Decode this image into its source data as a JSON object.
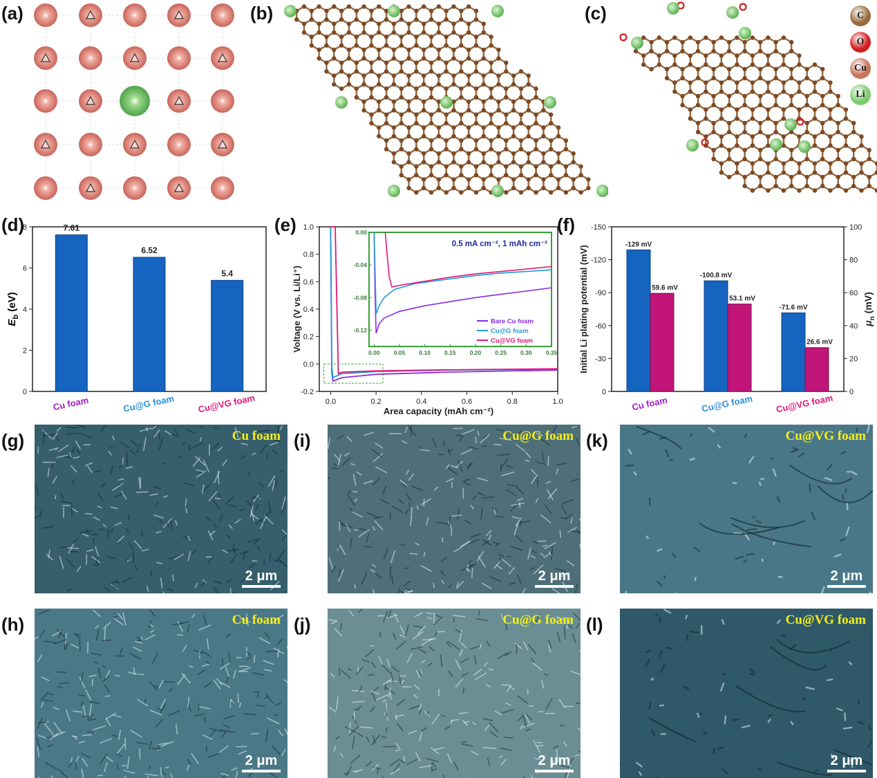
{
  "panels": {
    "a": "(a)",
    "b": "(b)",
    "c": "(c)",
    "d": "(d)",
    "e": "(e)",
    "f": "(f)",
    "g": "(g)",
    "h": "(h)",
    "i": "(i)",
    "j": "(j)",
    "k": "(k)",
    "l": "(l)"
  },
  "legend_atoms": [
    {
      "label": "C",
      "color": "#9a6a3c"
    },
    {
      "label": "O",
      "color": "#d21e1e"
    },
    {
      "label": "Cu",
      "color": "#c8745a"
    },
    {
      "label": "Li",
      "color": "#7dcb6e"
    }
  ],
  "sem_images": [
    {
      "id": "g",
      "title": "Cu foam",
      "scale": "2 μm",
      "tone": "#365e6d"
    },
    {
      "id": "h",
      "title": "Cu foam",
      "scale": "2 μm",
      "tone": "#4b7887"
    },
    {
      "id": "i",
      "title": "Cu@G foam",
      "scale": "2 μm",
      "tone": "#4e6f78"
    },
    {
      "id": "j",
      "title": "Cu@G foam",
      "scale": "2 μm",
      "tone": "#6a8e93"
    },
    {
      "id": "k",
      "title": "Cu@VG foam",
      "scale": "2 μm",
      "tone": "#4a7788"
    },
    {
      "id": "l",
      "title": "Cu@VG foam",
      "scale": "2 μm",
      "tone": "#2f5868"
    }
  ],
  "chart_data": [
    {
      "id": "d",
      "type": "bar",
      "categories": [
        "Cu foam",
        "Cu@G foam",
        "Cu@VG foam"
      ],
      "category_colors": [
        "#a020c0",
        "#2a8fd6",
        "#e0147a"
      ],
      "values": [
        7.61,
        6.52,
        5.4
      ],
      "value_labels": [
        "7.61",
        "6.52",
        "5.4"
      ],
      "ylabel": "E_b (eV)",
      "ylabel_main": "E",
      "ylabel_sub": "b",
      "ylabel_unit": " (eV)",
      "ylim": [
        0,
        8
      ],
      "yticks": [
        "0",
        "2",
        "4",
        "6",
        "8"
      ],
      "bar_color": "#1565c0"
    },
    {
      "id": "e",
      "type": "line",
      "xlabel": "Area capacity (mAh cm⁻²)",
      "ylabel": "Voltage (V vs. Li/Li⁺)",
      "xlim": [
        -0.05,
        1.0
      ],
      "ylim": [
        -0.2,
        1.0
      ],
      "xticks": [
        "0.0",
        "0.2",
        "0.4",
        "0.6",
        "0.8",
        "1.0"
      ],
      "yticks": [
        "-0.2",
        "0.0",
        "0.2",
        "0.4",
        "0.6",
        "0.8",
        "1.0"
      ],
      "series": [
        {
          "name": "Bare Cu foam",
          "color": "#8a2be2",
          "x": [
            0.0,
            0.005,
            0.01,
            0.05,
            0.2,
            0.5,
            0.8,
            1.0
          ],
          "y": [
            1.0,
            -0.06,
            -0.125,
            -0.1,
            -0.075,
            -0.06,
            -0.05,
            -0.045
          ]
        },
        {
          "name": "Cu@G foam",
          "color": "#1e9ad6",
          "x": [
            0.0,
            0.005,
            0.01,
            0.05,
            0.2,
            0.5,
            0.8,
            1.0
          ],
          "y": [
            1.0,
            -0.02,
            -0.1,
            -0.07,
            -0.055,
            -0.045,
            -0.04,
            -0.038
          ]
        },
        {
          "name": "Cu@VG foam",
          "color": "#e0147a",
          "x": [
            0.0,
            0.02,
            0.034,
            0.05,
            0.2,
            0.5,
            0.8,
            1.0
          ],
          "y": [
            1.0,
            1.0,
            -0.07,
            -0.06,
            -0.05,
            -0.043,
            -0.038,
            -0.035
          ]
        }
      ],
      "inset": {
        "annotation": "0.5 mA cm⁻², 1 mAh cm⁻²",
        "xlim": [
          -0.01,
          0.35
        ],
        "ylim": [
          -0.14,
          0.0
        ],
        "xticks": [
          "0.00",
          "0.05",
          "0.10",
          "0.15",
          "0.20",
          "0.25",
          "0.30",
          "0.35"
        ],
        "yticks": [
          "0.00",
          "-0.04",
          "-0.08",
          "-0.12"
        ],
        "series": [
          {
            "name": "Bare Cu foam",
            "color": "#8a2be2",
            "x": [
              0.0,
              0.002,
              0.004,
              0.01,
              0.02,
              0.05,
              0.1,
              0.15,
              0.2,
              0.25,
              0.3,
              0.35
            ],
            "y": [
              0.0,
              -0.08,
              -0.124,
              -0.112,
              -0.105,
              -0.097,
              -0.09,
              -0.085,
              -0.08,
              -0.076,
              -0.072,
              -0.068
            ]
          },
          {
            "name": "Cu@G foam",
            "color": "#1e9ad6",
            "x": [
              0.0,
              0.002,
              0.004,
              0.01,
              0.02,
              0.04,
              0.08,
              0.15,
              0.2,
              0.25,
              0.3,
              0.35
            ],
            "y": [
              0.0,
              -0.05,
              -0.1,
              -0.09,
              -0.08,
              -0.07,
              -0.063,
              -0.057,
              -0.053,
              -0.05,
              -0.048,
              -0.046
            ]
          },
          {
            "name": "Cu@VG foam",
            "color": "#e0147a",
            "x": [
              0.022,
              0.026,
              0.03,
              0.035,
              0.05,
              0.1,
              0.15,
              0.2,
              0.25,
              0.3,
              0.35
            ],
            "y": [
              0.0,
              -0.03,
              -0.055,
              -0.067,
              -0.065,
              -0.06,
              -0.055,
              -0.051,
              -0.048,
              -0.045,
              -0.042
            ]
          }
        ]
      },
      "legend": [
        "Bare Cu foam",
        "Cu@G foam",
        "Cu@VG foam"
      ]
    },
    {
      "id": "f",
      "type": "bar",
      "categories": [
        "Cu foam",
        "Cu@G foam",
        "Cu@VG foam"
      ],
      "category_colors": [
        "#a020c0",
        "#2a8fd6",
        "#e0147a"
      ],
      "series": [
        {
          "name": "Initial Li plating potential",
          "color": "#1565c0",
          "values": [
            -129,
            -100.8,
            -71.6
          ],
          "labels": [
            "-129 mV",
            "-100.8 mV",
            "-71.6 mV"
          ]
        },
        {
          "name": "μn",
          "color": "#c2157a",
          "values": [
            59.6,
            53.1,
            26.6
          ],
          "labels": [
            "59.6 mV",
            "53.1 mV",
            "26.6 mV"
          ]
        }
      ],
      "ylabel_left": "Initial Li plating potential (mV)",
      "ylabel_right_main": "μ",
      "ylabel_right_sub": "n",
      "ylabel_right_unit": " (mV)",
      "ylim_left": [
        0,
        -150
      ],
      "yticks_left": [
        "0",
        "-30",
        "-60",
        "-90",
        "-120",
        "-150"
      ],
      "ylim_right": [
        0,
        100
      ],
      "yticks_right": [
        "0",
        "20",
        "40",
        "60",
        "80",
        "100"
      ]
    }
  ]
}
